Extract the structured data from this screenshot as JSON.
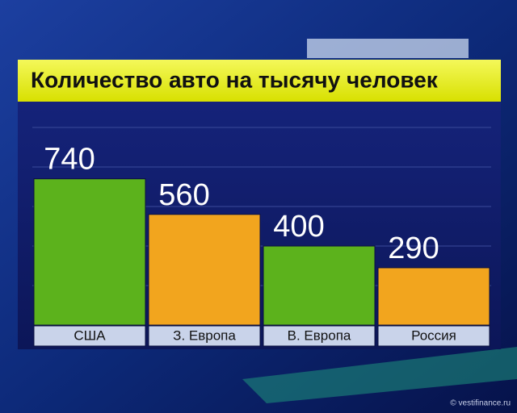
{
  "chart_data": {
    "type": "bar",
    "title": "Количество авто на тысячу человек",
    "categories": [
      "США",
      "З. Европа",
      "В. Европа",
      "Россия"
    ],
    "values": [
      740,
      560,
      400,
      290
    ],
    "colors": [
      "#5cb21c",
      "#f2a51e",
      "#5cb21c",
      "#f2a51e"
    ],
    "ylim": [
      0,
      1000
    ],
    "yticks": [
      200,
      400,
      600,
      800,
      1000
    ],
    "grid": true,
    "credit": "© vestifinance.ru"
  }
}
